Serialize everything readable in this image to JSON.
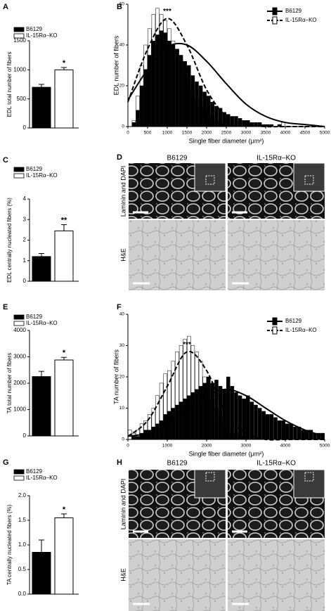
{
  "chart_data": [
    {
      "type": "bar",
      "panel": "A",
      "ylabel": "EDL total number of fibers",
      "categories": [
        "B6129",
        "IL-15Rα–KO"
      ],
      "values": [
        700,
        1000
      ],
      "errors": [
        50,
        40
      ],
      "colors": [
        "#000000",
        "#ffffff"
      ],
      "ylim": [
        0,
        1500
      ],
      "yticks": [
        0,
        500,
        1000,
        1500
      ],
      "annotation": "*"
    },
    {
      "type": "histogram",
      "panel": "B",
      "ylabel": "EDL number of fibers",
      "xlabel": "Single fiber diameter (μm²)",
      "annotation": "***",
      "bins": [
        0,
        100,
        200,
        300,
        400,
        500,
        600,
        700,
        800,
        900,
        1000,
        1100,
        1200,
        1300,
        1400,
        1500,
        1600,
        1700,
        1800,
        1900,
        2000,
        2100,
        2200,
        2300,
        2400,
        2500,
        2600,
        2700,
        2800,
        2900,
        3000,
        3100,
        3200,
        3300,
        3400,
        3500,
        3600,
        3700,
        3800,
        3900,
        4000
      ],
      "fit_x": [
        0,
        500,
        1000,
        1500,
        2000,
        2500,
        3000,
        3500,
        4000,
        4500,
        5000
      ],
      "series": [
        {
          "name": "B6129",
          "color": "#000000",
          "line_style": "solid",
          "values": [
            0,
            2,
            8,
            20,
            28,
            35,
            42,
            45,
            47,
            46,
            42,
            40,
            38,
            35,
            32,
            30,
            25,
            22,
            20,
            17,
            15,
            12,
            10,
            9,
            7,
            6,
            5,
            5,
            4,
            3,
            3,
            2,
            2,
            2,
            1,
            1,
            1,
            0,
            1,
            0
          ],
          "fit": [
            13,
            28,
            39,
            40,
            32,
            21,
            11,
            5,
            2,
            1,
            0
          ]
        },
        {
          "name": "IL-15Rα–KO",
          "color": "#ffffff",
          "line_style": "dashed",
          "values": [
            0,
            3,
            15,
            30,
            40,
            48,
            55,
            58,
            55,
            52,
            48,
            42,
            38,
            33,
            28,
            22,
            18,
            14,
            10,
            8,
            6,
            5,
            3,
            2,
            2,
            1,
            1,
            1,
            0,
            0,
            0,
            0,
            0,
            0,
            0,
            0,
            0,
            0,
            0,
            2
          ],
          "fit": [
            12,
            38,
            53,
            40,
            18,
            5,
            1,
            0,
            0,
            0,
            0
          ]
        }
      ],
      "xlim": [
        0,
        5000
      ],
      "xticks": [
        0,
        500,
        1000,
        1500,
        2000,
        2500,
        3000,
        3500,
        4000,
        4500,
        5000
      ],
      "ylim": [
        0,
        60
      ],
      "yticks": [
        0,
        20,
        40,
        60
      ]
    },
    {
      "type": "bar",
      "panel": "C",
      "ylabel": "EDL centrally nucleated fibers (%)",
      "categories": [
        "B6129",
        "IL-15Rα–KO"
      ],
      "values": [
        1.2,
        2.45
      ],
      "errors": [
        0.15,
        0.3
      ],
      "colors": [
        "#000000",
        "#ffffff"
      ],
      "ylim": [
        0,
        4
      ],
      "yticks": [
        0,
        1,
        2,
        3,
        4
      ],
      "annotation": "**"
    },
    {
      "type": "bar",
      "panel": "E",
      "ylabel": "TA total number of fibers",
      "categories": [
        "B6129",
        "IL-15Rα–KO"
      ],
      "values": [
        2250,
        2880
      ],
      "errors": [
        200,
        100
      ],
      "colors": [
        "#000000",
        "#ffffff"
      ],
      "ylim": [
        0,
        4000
      ],
      "yticks": [
        0,
        1000,
        2000,
        3000,
        4000
      ],
      "annotation": "*"
    },
    {
      "type": "histogram",
      "panel": "F",
      "ylabel": "TA number of fibers",
      "xlabel": "Single fiber diameter (μm²)",
      "annotation": "***",
      "bins": [
        0,
        100,
        200,
        300,
        400,
        500,
        600,
        700,
        800,
        900,
        1000,
        1100,
        1200,
        1300,
        1400,
        1500,
        1600,
        1700,
        1800,
        1900,
        2000,
        2100,
        2200,
        2300,
        2400,
        2500,
        2600,
        2700,
        2800,
        2900,
        3000,
        3100,
        3200,
        3300,
        3400,
        3500,
        3600,
        3700,
        3800,
        3900,
        4000,
        4100,
        4200,
        4300,
        4400,
        4500,
        4600,
        4700,
        4800,
        4900,
        5000
      ],
      "fit_x": [
        0,
        500,
        1000,
        1500,
        2000,
        2500,
        3000,
        3500,
        4000,
        4500,
        5000
      ],
      "series": [
        {
          "name": "B6129",
          "color": "#000000",
          "line_style": "solid",
          "values": [
            0,
            1,
            1,
            2,
            3,
            3,
            4,
            5,
            6,
            8,
            9,
            10,
            11,
            12,
            13,
            14,
            15,
            16,
            17,
            18,
            20,
            18,
            19,
            17,
            16,
            20,
            17,
            15,
            14,
            13,
            14,
            12,
            11,
            10,
            9,
            8,
            8,
            7,
            6,
            6,
            5,
            5,
            4,
            4,
            3,
            3,
            3,
            2,
            2,
            2
          ],
          "fit": [
            1,
            2,
            5,
            10,
            14,
            16,
            14,
            10,
            6,
            3,
            1
          ]
        },
        {
          "name": "IL-15Rα–KO",
          "color": "#ffffff",
          "line_style": "dashed",
          "values": [
            3,
            2,
            3,
            5,
            6,
            8,
            10,
            14,
            18,
            21,
            22,
            25,
            28,
            30,
            32,
            33,
            30,
            28,
            25,
            20,
            17,
            13,
            10,
            7,
            5,
            3,
            2,
            2,
            1,
            1,
            0,
            0,
            0,
            0,
            0,
            0,
            0,
            0,
            0,
            0,
            0,
            0,
            0,
            0,
            0,
            0,
            0,
            0,
            0,
            0
          ],
          "fit": [
            1,
            6,
            17,
            28,
            22,
            8,
            2,
            0,
            0,
            0,
            0
          ]
        }
      ],
      "xlim": [
        0,
        5000
      ],
      "xticks": [
        0,
        1000,
        2000,
        3000,
        4000,
        5000
      ],
      "ylim": [
        0,
        40
      ],
      "yticks": [
        0,
        10,
        20,
        30,
        40
      ]
    },
    {
      "type": "bar",
      "panel": "G",
      "ylabel": "TA centrally nucleated fibers (%)",
      "categories": [
        "B6129",
        "IL-15Rα–KO"
      ],
      "values": [
        0.85,
        1.55
      ],
      "errors": [
        0.25,
        0.08
      ],
      "colors": [
        "#000000",
        "#ffffff"
      ],
      "ylim": [
        0,
        2
      ],
      "yticks": [
        {
          "value": 0,
          "label": "0.0"
        },
        0.5,
        {
          "value": 1,
          "label": "1.0"
        },
        1.5,
        {
          "value": 2,
          "label": "2.0"
        }
      ],
      "annotation": "*"
    }
  ],
  "image_panels": [
    {
      "panel": "D",
      "columns": [
        "B6129",
        "IL-15Rα–KO"
      ],
      "rows": [
        "Laminin and DAPI",
        "H&E"
      ]
    },
    {
      "panel": "H",
      "columns": [
        "B6129",
        "IL-15Rα–KO"
      ],
      "rows": [
        "Laminin and DAPI",
        "H&E"
      ]
    }
  ]
}
